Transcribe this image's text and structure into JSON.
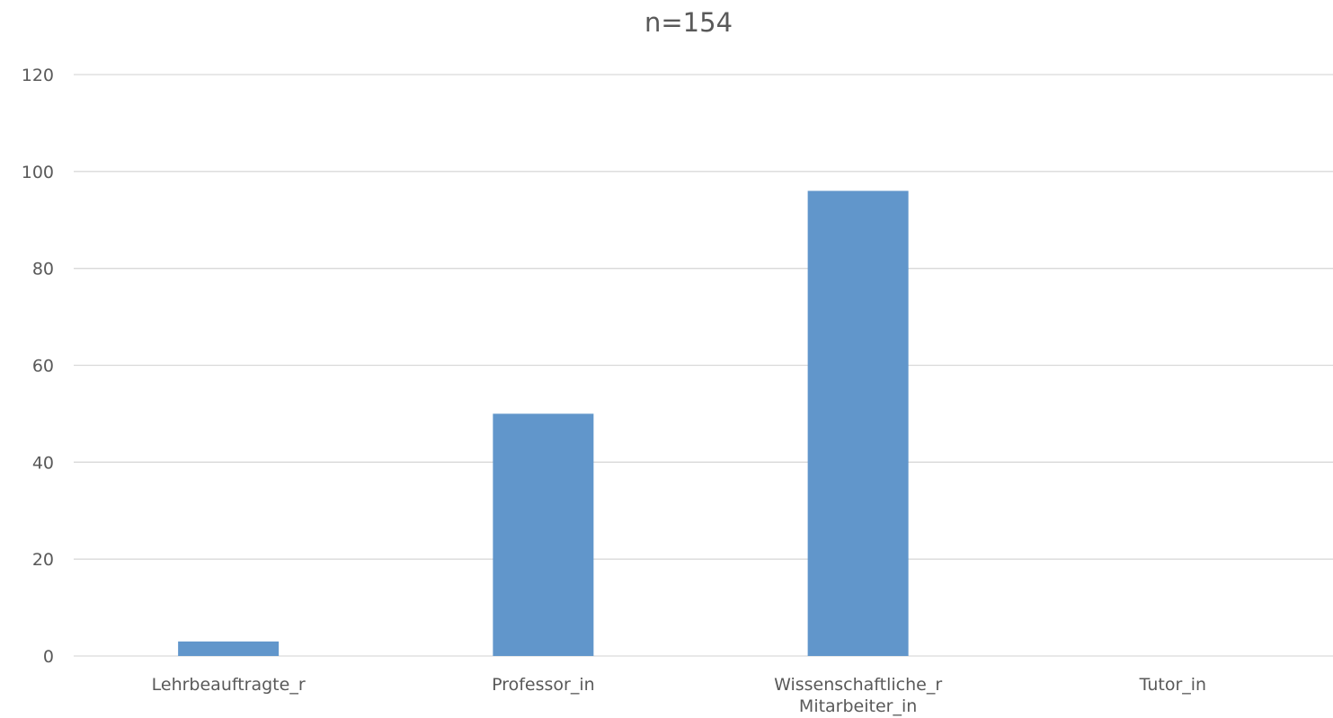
{
  "chart_data": {
    "type": "bar",
    "title": "n=154",
    "categories": [
      [
        "Lehrbeauftragte_r"
      ],
      [
        "Professor_in"
      ],
      [
        "Wissenschaftliche_r",
        "Mitarbeiter_in"
      ],
      [
        "Tutor_in"
      ]
    ],
    "values": [
      3,
      50,
      96,
      0
    ],
    "ylim": [
      0,
      120
    ],
    "yticks": [
      0,
      20,
      40,
      60,
      80,
      100,
      120
    ],
    "grid": true,
    "legend": "none",
    "bar_color": "#6196cb"
  }
}
